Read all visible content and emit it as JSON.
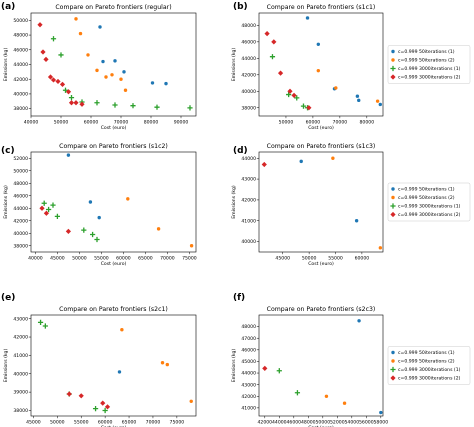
{
  "series_colors": [
    "#1f77b4",
    "#ff7f0e",
    "#2ca02c",
    "#d62728"
  ],
  "series_markers": [
    "circle",
    "circle",
    "plus",
    "diamond"
  ],
  "legend": {
    "entries": [
      "c=0.999 50iterations (1)",
      "c=0.999 50iterations (2)",
      "c=0.999 3000iterations (1)",
      "c=0.999 3000iterations (2)"
    ]
  },
  "chart_data": [
    {
      "panel": "(a)",
      "type": "scatter",
      "title": "Compare on Pareto frontiers (regular)",
      "xlabel": "Cost (euro)",
      "ylabel": "Emissions (kg)",
      "xlim": [
        40000,
        95000
      ],
      "ylim": [
        37000,
        51000
      ],
      "xticks": [
        40000,
        50000,
        60000,
        70000,
        80000,
        90000
      ],
      "yticks": [
        38000,
        40000,
        42000,
        44000,
        46000,
        48000,
        50000
      ],
      "legend": false,
      "series": [
        {
          "name": "c=0.999 50iterations (1)",
          "x": [
            63000,
            64000,
            68000,
            71000,
            80500,
            85000
          ],
          "y": [
            49100,
            44400,
            44500,
            43000,
            41500,
            41400
          ]
        },
        {
          "name": "c=0.999 50iterations (2)",
          "x": [
            55000,
            56500,
            59000,
            62000,
            65000,
            67000,
            70000,
            71500
          ],
          "y": [
            50200,
            48200,
            45300,
            43200,
            42300,
            42600,
            42000,
            40500
          ]
        },
        {
          "name": "c=0.999 3000iterations (1)",
          "x": [
            47500,
            50000,
            51500,
            53500,
            57000,
            62000,
            68000,
            74000,
            82000,
            93000
          ],
          "y": [
            47500,
            45300,
            40500,
            39500,
            38900,
            38800,
            38500,
            38400,
            38200,
            38100
          ]
        },
        {
          "name": "c=0.999 3000iterations (2)",
          "x": [
            43000,
            44000,
            45000,
            46500,
            47500,
            49000,
            50500,
            52500,
            53500,
            55000,
            57000
          ],
          "y": [
            49400,
            45700,
            44700,
            42300,
            41900,
            41700,
            41300,
            40300,
            38800,
            38800,
            38600
          ]
        }
      ]
    },
    {
      "panel": "(b)",
      "type": "scatter",
      "title": "Compare on Pareto frontiers (s1c1)",
      "xlabel": "Cost (euro)",
      "ylabel": "Emissions (kg)",
      "xlim": [
        40000,
        86000
      ],
      "ylim": [
        37000,
        49500
      ],
      "xticks": [
        50000,
        60000,
        70000,
        80000
      ],
      "yticks": [
        38000,
        40000,
        42000,
        44000,
        46000,
        48000
      ],
      "legend": true,
      "series": [
        {
          "name": "c=0.999 50iterations (1)",
          "x": [
            58000,
            62000,
            68000,
            76500,
            77000,
            85000
          ],
          "y": [
            48900,
            45700,
            40300,
            39400,
            38900,
            38400
          ]
        },
        {
          "name": "c=0.999 50iterations (2)",
          "x": [
            62000,
            68500,
            84000
          ],
          "y": [
            42500,
            40400,
            38800
          ]
        },
        {
          "name": "c=0.999 3000iterations (1)",
          "x": [
            45000,
            51000,
            54000,
            56500,
            58000
          ],
          "y": [
            44200,
            39600,
            39200,
            38200,
            38000
          ]
        },
        {
          "name": "c=0.999 3000iterations (2)",
          "x": [
            43000,
            45500,
            48000,
            51500,
            53000,
            58500
          ],
          "y": [
            47000,
            46000,
            42200,
            40000,
            39500,
            38000
          ]
        }
      ]
    },
    {
      "panel": "(c)",
      "type": "scatter",
      "title": "Compare on Pareto frontiers (s1c2)",
      "xlabel": "Cost (euro)",
      "ylabel": "Emissions (kg)",
      "xlim": [
        39000,
        76500
      ],
      "ylim": [
        37000,
        53000
      ],
      "xticks": [
        40000,
        45000,
        50000,
        55000,
        60000,
        65000,
        70000,
        75000
      ],
      "yticks": [
        38000,
        40000,
        42000,
        44000,
        46000,
        48000,
        50000,
        52000
      ],
      "legend": false,
      "series": [
        {
          "name": "c=0.999 50iterations (1)",
          "x": [
            47500,
            52500,
            54500
          ],
          "y": [
            52500,
            45000,
            42500
          ]
        },
        {
          "name": "c=0.999 50iterations (2)",
          "x": [
            61000,
            68000,
            75500
          ],
          "y": [
            45500,
            40700,
            38000
          ]
        },
        {
          "name": "c=0.999 3000iterations (1)",
          "x": [
            42000,
            43000,
            44000,
            45000,
            51000,
            53000,
            54000
          ],
          "y": [
            44800,
            43800,
            44500,
            42700,
            40500,
            39800,
            39000
          ]
        },
        {
          "name": "c=0.999 3000iterations (2)",
          "x": [
            41500,
            42500,
            47500
          ],
          "y": [
            44000,
            43200,
            40300
          ]
        }
      ]
    },
    {
      "panel": "(d)",
      "type": "scatter",
      "title": "Compare on Pareto frontiers (s1c3)",
      "xlabel": "Cost (euro)",
      "ylabel": "Emissions (kg)",
      "xlim": [
        40500,
        64000
      ],
      "ylim": [
        39500,
        44300
      ],
      "xticks": [
        45000,
        50000,
        55000,
        60000
      ],
      "yticks": [
        40000,
        41000,
        42000,
        43000,
        44000
      ],
      "legend": true,
      "series": [
        {
          "name": "c=0.999 50iterations (1)",
          "x": [
            48500,
            59000
          ],
          "y": [
            43850,
            41000
          ]
        },
        {
          "name": "c=0.999 50iterations (2)",
          "x": [
            54500,
            63500
          ],
          "y": [
            44000,
            39700
          ]
        },
        {
          "name": "c=0.999 3000iterations (1)",
          "x": [],
          "y": []
        },
        {
          "name": "c=0.999 3000iterations (2)",
          "x": [
            41500
          ],
          "y": [
            43700
          ]
        }
      ]
    },
    {
      "panel": "(e)",
      "type": "scatter",
      "title": "Compare on Pareto frontiers (s2c1)",
      "xlabel": "Cost (euro)",
      "ylabel": "Emissions (kg)",
      "xlim": [
        44500,
        79000
      ],
      "ylim": [
        37700,
        43200
      ],
      "xticks": [
        45000,
        50000,
        55000,
        60000,
        65000,
        70000,
        75000
      ],
      "yticks": [
        38000,
        39000,
        40000,
        41000,
        42000,
        43000
      ],
      "legend": false,
      "series": [
        {
          "name": "c=0.999 50iterations (1)",
          "x": [
            63000
          ],
          "y": [
            40100
          ]
        },
        {
          "name": "c=0.999 50iterations (2)",
          "x": [
            63500,
            72000,
            73000,
            78000
          ],
          "y": [
            42400,
            40600,
            40500,
            38500
          ]
        },
        {
          "name": "c=0.999 3000iterations (1)",
          "x": [
            46500,
            47500,
            52500,
            58000,
            60000
          ],
          "y": [
            42800,
            42600,
            38900,
            38100,
            38000
          ]
        },
        {
          "name": "c=0.999 3000iterations (2)",
          "x": [
            52500,
            55000,
            59500,
            60500
          ],
          "y": [
            38900,
            38800,
            38400,
            38200
          ]
        }
      ]
    },
    {
      "panel": "(f)",
      "type": "scatter",
      "title": "Compare on Pareto frontiers (s2c3)",
      "xlabel": "Cost (euro)",
      "ylabel": "Emissions (kg)",
      "xlim": [
        41200,
        58300
      ],
      "ylim": [
        40300,
        49000
      ],
      "xticks": [
        42000,
        44000,
        46000,
        48000,
        50000,
        52000,
        54000,
        56000,
        58000
      ],
      "yticks": [
        41000,
        42000,
        43000,
        44000,
        45000,
        46000,
        47000,
        48000
      ],
      "legend": true,
      "series": [
        {
          "name": "c=0.999 50iterations (1)",
          "x": [
            55000,
            58000
          ],
          "y": [
            48500,
            40600
          ]
        },
        {
          "name": "c=0.999 50iterations (2)",
          "x": [
            50500,
            53000
          ],
          "y": [
            42000,
            41400
          ]
        },
        {
          "name": "c=0.999 3000iterations (1)",
          "x": [
            44000,
            46500
          ],
          "y": [
            44200,
            42300
          ]
        },
        {
          "name": "c=0.999 3000iterations (2)",
          "x": [
            42000
          ],
          "y": [
            44400
          ]
        }
      ]
    }
  ]
}
